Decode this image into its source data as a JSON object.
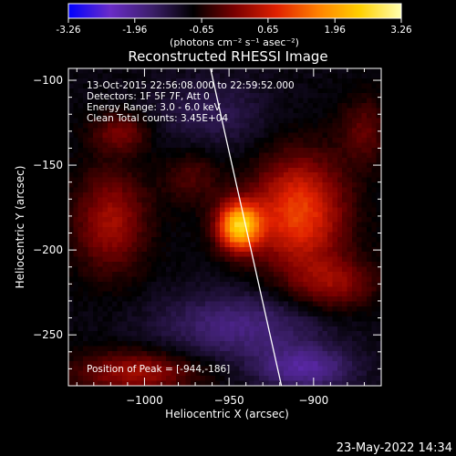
{
  "colorbar": {
    "tick_labels": [
      "-3.26",
      "-1.96",
      "-0.65",
      "0.65",
      "1.96",
      "3.26"
    ],
    "range": [
      -3.26,
      3.26
    ],
    "units_label": "(photons cm⁻² s⁻¹ asec⁻²)",
    "colormap": [
      "#0000ff",
      "#6a2cc8",
      "#3c1f6b",
      "#000000",
      "#7a0000",
      "#e02000",
      "#ff8000",
      "#ffd000",
      "#ffffb0"
    ]
  },
  "plot": {
    "title": "Reconstructed RHESSI Image",
    "annotations": [
      "13-Oct-2015 22:56:08.000 to 22:59:52.000",
      "Detectors: 1F 5F 7F, Att 0",
      "Energy Range: 3.0 - 6.0 keV",
      "Clean    Total counts: 3.45E+04"
    ],
    "peak_label": "Position of Peak = [-944,-186]",
    "footer_date": "23-May-2022 14:34"
  },
  "chart_data": {
    "type": "heatmap",
    "title": "Reconstructed RHESSI Image",
    "xlabel": "Heliocentric X (arcsec)",
    "ylabel": "Heliocentric Y (arcsec)",
    "xlim": [
      -1045,
      -860
    ],
    "ylim": [
      -280,
      -93
    ],
    "x_ticks": [
      -1000,
      -950,
      -900
    ],
    "x_tick_labels": [
      "−1000",
      "−950",
      "−900"
    ],
    "y_ticks": [
      -100,
      -150,
      -200,
      -250
    ],
    "y_tick_labels": [
      "−100",
      "−150",
      "−200",
      "−250"
    ],
    "grid": false,
    "peak": [
      -944,
      -186
    ],
    "limb_line": [
      [
        -961,
        -93
      ],
      [
        -919,
        -280
      ]
    ],
    "sources": [
      {
        "x": -944,
        "y": -186,
        "amp": 3.2,
        "sx": 9,
        "sy": 10
      },
      {
        "x": -909,
        "y": -178,
        "amp": 2.0,
        "sx": 19,
        "sy": 23
      },
      {
        "x": -888,
        "y": -220,
        "amp": 1.0,
        "sx": 18,
        "sy": 11
      },
      {
        "x": -1020,
        "y": -183,
        "amp": 1.2,
        "sx": 15,
        "sy": 21
      },
      {
        "x": -972,
        "y": -157,
        "amp": 0.6,
        "sx": 12,
        "sy": 12
      },
      {
        "x": -1014,
        "y": -131,
        "amp": 0.9,
        "sx": 12,
        "sy": 8
      },
      {
        "x": -870,
        "y": -130,
        "amp": 0.7,
        "sx": 10,
        "sy": 14
      },
      {
        "x": -1005,
        "y": -272,
        "amp": 1.2,
        "sx": 26,
        "sy": 9
      },
      {
        "x": -944,
        "y": -245,
        "amp": -0.9,
        "sx": 34,
        "sy": 14
      },
      {
        "x": -905,
        "y": -270,
        "amp": -1.1,
        "sx": 20,
        "sy": 9
      },
      {
        "x": -960,
        "y": -120,
        "amp": -0.5,
        "sx": 25,
        "sy": 16
      }
    ],
    "background": -0.9
  }
}
